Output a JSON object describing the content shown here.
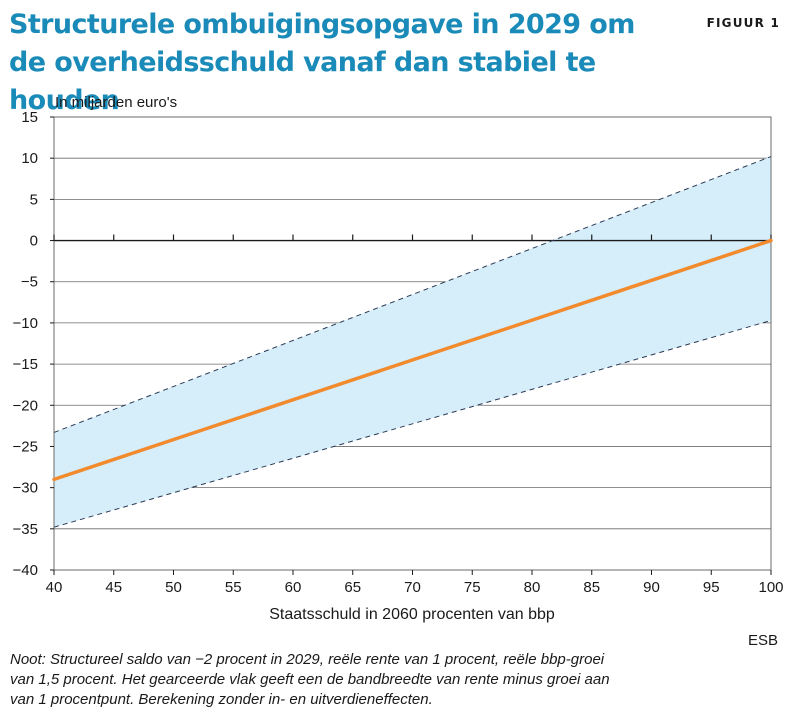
{
  "figure_label": "FIGUUR 1",
  "title_lines": [
    "Structurele ombuigingsopgave in 2029 om",
    "de overheidsschuld vanaf dan stabiel te houden"
  ],
  "source": "ESB",
  "note": "Noot: Structureel saldo van −2 procent in 2029, reële rente van 1 procent, reële bbp-groei van 1,5 procent. Het gearceerde vlak geeft een de bandbreedte van rente minus groei aan van 1 procentpunt. Berekening zonder in- en uitverdieneffecten.",
  "colors": {
    "title": "#1a8bb8",
    "line": "#f28a2e",
    "band": "#d6eefa",
    "dashed": "#2b3a55"
  },
  "chart_data": {
    "type": "line",
    "title": "Structurele ombuigingsopgave in 2029 om de overheidsschuld vanaf dan stabiel te houden",
    "ylabel": "In miljarden euro's",
    "xlabel": "Staatsschuld in 2060 procenten van bbp",
    "xlim": [
      40,
      100
    ],
    "ylim": [
      -40,
      15
    ],
    "x_ticks": [
      40,
      45,
      50,
      55,
      60,
      65,
      70,
      75,
      80,
      85,
      90,
      95,
      100
    ],
    "y_ticks": [
      15,
      10,
      5,
      0,
      -5,
      -10,
      -15,
      -20,
      -25,
      -30,
      -35,
      -40
    ],
    "y_tick_labels": [
      "15",
      "10",
      "5",
      "0",
      "−5",
      "−10",
      "−15",
      "−20",
      "−25",
      "−30",
      "−35",
      "−40"
    ],
    "grid": true,
    "series": [
      {
        "style": "solid",
        "x": [
          40,
          100
        ],
        "y": [
          -29,
          0
        ]
      },
      {
        "style": "dashed-upper-band",
        "x": [
          40,
          100
        ],
        "y": [
          -23.3,
          10.2
        ]
      },
      {
        "style": "dashed-lower-band",
        "x": [
          40,
          100
        ],
        "y": [
          -34.8,
          -9.7
        ]
      }
    ]
  }
}
